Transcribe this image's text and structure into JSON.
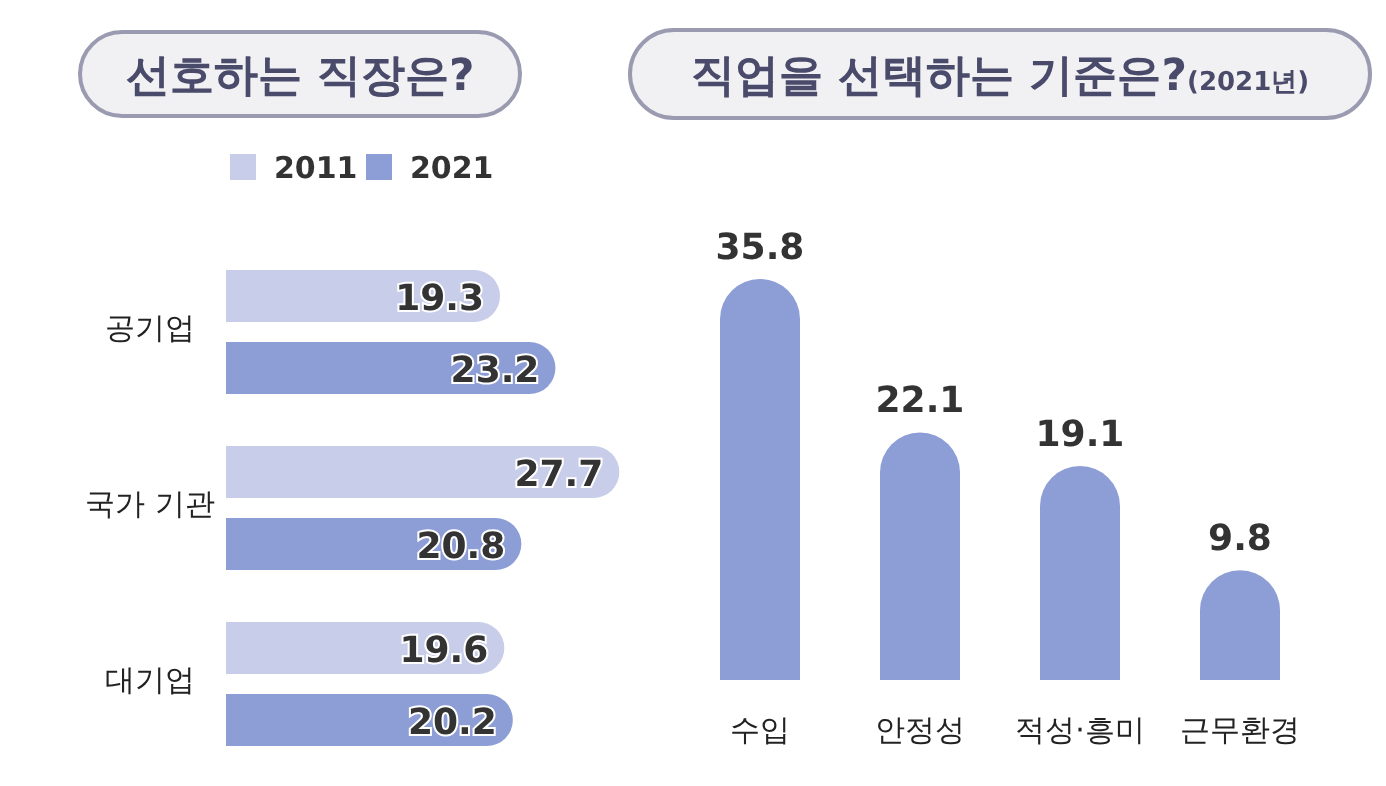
{
  "chart_data": [
    {
      "type": "bar",
      "orientation": "horizontal",
      "title": "선호하는 직장은?",
      "categories": [
        "공기업",
        "국가 기관",
        "대기업"
      ],
      "legend": "top",
      "data_labels": true,
      "series": [
        {
          "name": "2011",
          "color": "#c8cdea",
          "values": [
            19.3,
            27.7,
            19.6
          ]
        },
        {
          "name": "2021",
          "color": "#8d9dd6",
          "values": [
            23.2,
            20.8,
            20.2
          ]
        }
      ]
    },
    {
      "type": "bar",
      "title": "직업을 선택하는 기준은?",
      "subtitle": "(2021년)",
      "categories": [
        "수입",
        "안정성",
        "적성·흥미",
        "근무환경"
      ],
      "data_labels": true,
      "color": "#8d9dd6",
      "values": [
        35.8,
        22.1,
        19.1,
        9.8
      ]
    }
  ]
}
